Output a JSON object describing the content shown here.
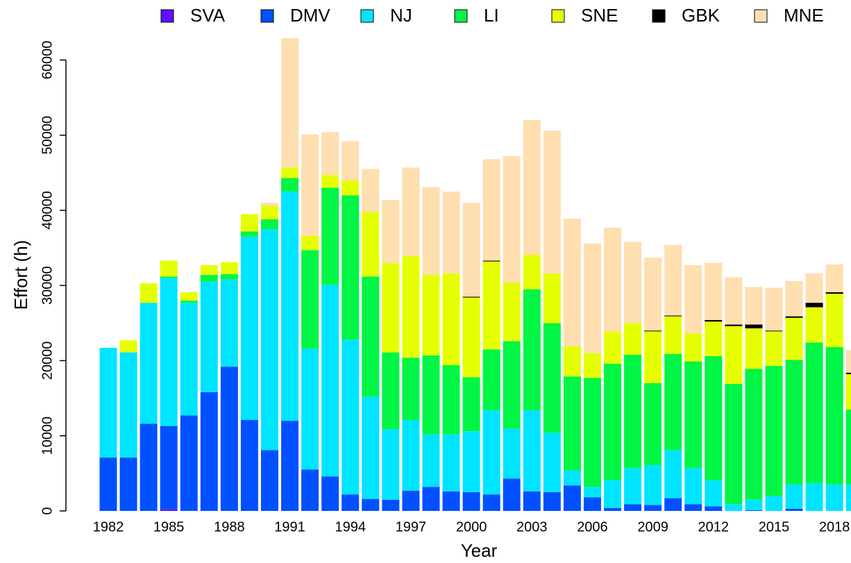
{
  "chart_data": {
    "type": "stacked-bar",
    "x_label": "Year",
    "y_label": "Effort (h)",
    "categories": [
      "1982",
      null,
      null,
      "1985",
      null,
      null,
      "1988",
      null,
      null,
      "1991",
      null,
      null,
      "1994",
      null,
      null,
      "1997",
      null,
      null,
      "2000",
      null,
      null,
      "2003",
      null,
      null,
      "2006",
      null,
      null,
      "2009",
      null,
      null,
      "2012",
      null,
      null,
      "2015",
      null,
      null,
      "2018",
      null
    ],
    "ylim": [
      0,
      63000
    ],
    "yticks": [
      0,
      10000,
      20000,
      30000,
      40000,
      50000,
      60000
    ],
    "legend": "top",
    "grid": false,
    "series": [
      {
        "name": "SVA",
        "color": "#6010ff",
        "values": [
          0,
          0,
          0,
          200,
          0,
          0,
          0,
          0,
          0,
          0,
          0,
          0,
          0,
          0,
          0,
          0,
          0,
          0,
          0,
          0,
          0,
          0,
          0,
          0,
          0,
          0,
          0,
          0,
          0,
          0,
          0,
          0,
          0,
          0,
          0,
          0,
          0,
          0
        ]
      },
      {
        "name": "DMV",
        "color": "#0050ff",
        "values": [
          7100,
          7100,
          11600,
          11100,
          12700,
          15800,
          19200,
          12100,
          8100,
          12000,
          5500,
          4600,
          2200,
          1600,
          1500,
          2700,
          3200,
          2600,
          2500,
          2200,
          4300,
          2600,
          2500,
          3400,
          1800,
          400,
          900,
          800,
          1700,
          900,
          600,
          0,
          100,
          0,
          300,
          0,
          0,
          0
        ]
      },
      {
        "name": "NJ",
        "color": "#00e5ff",
        "values": [
          14600,
          14000,
          16100,
          19700,
          15000,
          14700,
          11600,
          24400,
          29400,
          30500,
          16100,
          25500,
          20600,
          13600,
          9400,
          9400,
          7000,
          7600,
          8100,
          11200,
          6700,
          10800,
          7900,
          2000,
          1400,
          3700,
          4800,
          5300,
          6400,
          4800,
          3500,
          900,
          1400,
          2000,
          3200,
          3700,
          3500,
          3500
        ]
      },
      {
        "name": "LI",
        "color": "#00f545",
        "values": [
          0,
          0,
          0,
          200,
          300,
          900,
          700,
          700,
          1300,
          1800,
          13100,
          12900,
          19200,
          16000,
          10200,
          8300,
          10500,
          9200,
          7200,
          8100,
          11600,
          16100,
          14600,
          12500,
          14500,
          15500,
          15100,
          10900,
          12800,
          14200,
          16500,
          16000,
          17400,
          17300,
          16600,
          18700,
          18300,
          10000
        ]
      },
      {
        "name": "SNE",
        "color": "#e6ff00",
        "values": [
          0,
          1600,
          2600,
          2100,
          1100,
          1300,
          1600,
          2300,
          1800,
          1400,
          1900,
          1700,
          2000,
          8600,
          11900,
          13500,
          10700,
          12200,
          10600,
          11700,
          7800,
          4600,
          6600,
          4000,
          3300,
          4300,
          4200,
          6900,
          5000,
          3700,
          4600,
          7700,
          5400,
          4600,
          5600,
          4700,
          7100,
          4700
        ]
      },
      {
        "name": "GBK",
        "color": "#000000",
        "values": [
          0,
          0,
          0,
          0,
          0,
          0,
          0,
          0,
          0,
          0,
          0,
          0,
          0,
          0,
          0,
          0,
          0,
          0,
          100,
          100,
          0,
          0,
          0,
          0,
          0,
          0,
          0,
          100,
          100,
          0,
          200,
          200,
          500,
          100,
          200,
          600,
          200,
          200
        ]
      },
      {
        "name": "MNE",
        "color": "#ffdeb0",
        "values": [
          0,
          0,
          0,
          0,
          0,
          0,
          0,
          0,
          400,
          17200,
          13500,
          5700,
          5200,
          5700,
          8400,
          11800,
          11700,
          10900,
          12500,
          13500,
          16800,
          17900,
          19000,
          17000,
          14600,
          13800,
          10800,
          9700,
          9400,
          9100,
          7600,
          6300,
          5000,
          5700,
          4700,
          3900,
          3700,
          3000
        ]
      }
    ]
  }
}
